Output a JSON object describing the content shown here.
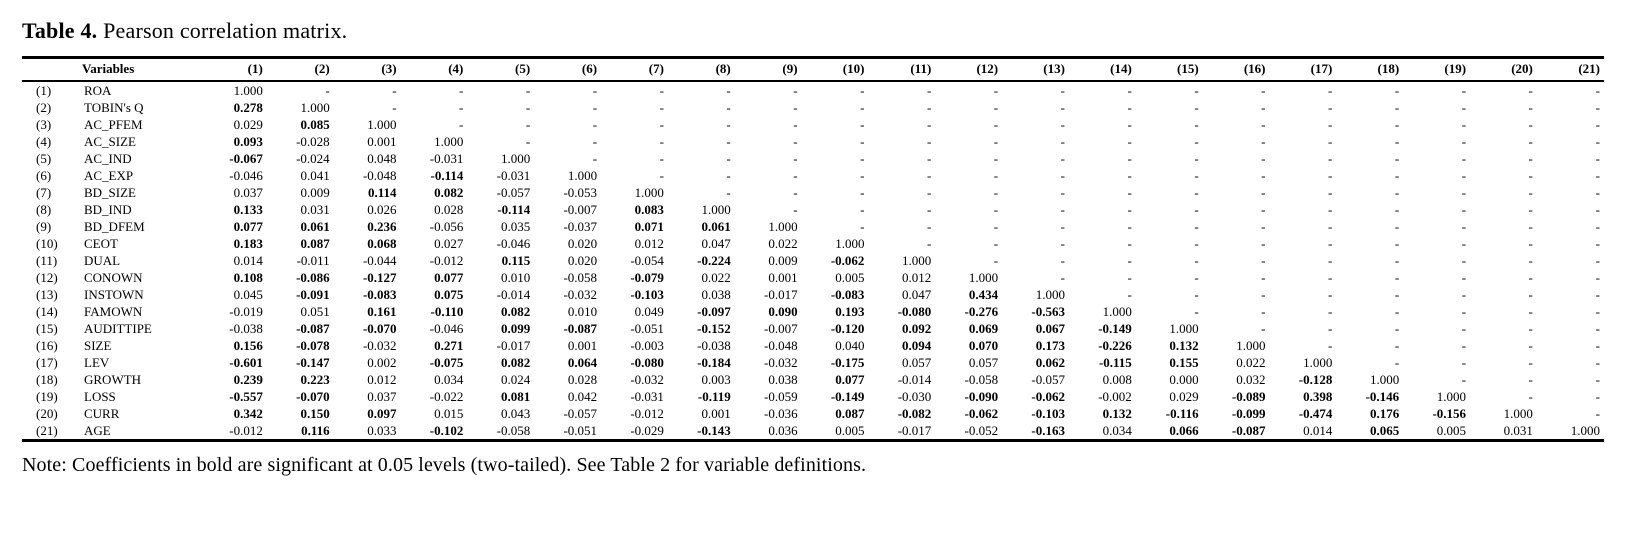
{
  "title": {
    "label": "Table 4.",
    "text": " Pearson correlation matrix."
  },
  "note": "Note: Coefficients in bold are significant at 0.05 levels (two-tailed). See Table 2 for variable definitions.",
  "table": {
    "corner_header": "Variables",
    "column_headers": [
      "(1)",
      "(2)",
      "(3)",
      "(4)",
      "(5)",
      "(6)",
      "(7)",
      "(8)",
      "(9)",
      "(10)",
      "(11)",
      "(12)",
      "(13)",
      "(14)",
      "(15)",
      "(16)",
      "(17)",
      "(18)",
      "(19)",
      "(20)",
      "(21)"
    ],
    "bold_meaning": "significant at 0.05 levels (two-tailed)",
    "rows": [
      {
        "num": "(1)",
        "name": "ROA",
        "values": [
          "1.000",
          "-",
          "-",
          "-",
          "-",
          "-",
          "-",
          "-",
          "-",
          "-",
          "-",
          "-",
          "-",
          "-",
          "-",
          "-",
          "-",
          "-",
          "-",
          "-",
          "-"
        ]
      },
      {
        "num": "(2)",
        "name": "TOBIN's Q",
        "values": [
          "*0.278",
          "1.000",
          "-",
          "-",
          "-",
          "-",
          "-",
          "-",
          "-",
          "-",
          "-",
          "-",
          "-",
          "-",
          "-",
          "-",
          "-",
          "-",
          "-",
          "-",
          "-"
        ]
      },
      {
        "num": "(3)",
        "name": "AC_PFEM",
        "values": [
          "0.029",
          "*0.085",
          "1.000",
          "-",
          "-",
          "-",
          "-",
          "-",
          "-",
          "-",
          "-",
          "-",
          "-",
          "-",
          "-",
          "-",
          "-",
          "-",
          "-",
          "-",
          "-"
        ]
      },
      {
        "num": "(4)",
        "name": "AC_SIZE",
        "values": [
          "*0.093",
          "-0.028",
          "0.001",
          "1.000",
          "-",
          "-",
          "-",
          "-",
          "-",
          "-",
          "-",
          "-",
          "-",
          "-",
          "-",
          "-",
          "-",
          "-",
          "-",
          "-",
          "-"
        ]
      },
      {
        "num": "(5)",
        "name": "AC_IND",
        "values": [
          "*-0.067",
          "-0.024",
          "0.048",
          "-0.031",
          "1.000",
          "-",
          "-",
          "-",
          "-",
          "-",
          "-",
          "-",
          "-",
          "-",
          "-",
          "-",
          "-",
          "-",
          "-",
          "-",
          "-"
        ]
      },
      {
        "num": "(6)",
        "name": "AC_EXP",
        "values": [
          "-0.046",
          "0.041",
          "-0.048",
          "*-0.114",
          "-0.031",
          "1.000",
          "-",
          "-",
          "-",
          "-",
          "-",
          "-",
          "-",
          "-",
          "-",
          "-",
          "-",
          "-",
          "-",
          "-",
          "-"
        ]
      },
      {
        "num": "(7)",
        "name": "BD_SIZE",
        "values": [
          "0.037",
          "0.009",
          "*0.114",
          "*0.082",
          "-0.057",
          "-0.053",
          "1.000",
          "-",
          "-",
          "-",
          "-",
          "-",
          "-",
          "-",
          "-",
          "-",
          "-",
          "-",
          "-",
          "-",
          "-"
        ]
      },
      {
        "num": "(8)",
        "name": "BD_IND",
        "values": [
          "*0.133",
          "0.031",
          "0.026",
          "0.028",
          "*-0.114",
          "-0.007",
          "*0.083",
          "1.000",
          "-",
          "-",
          "-",
          "-",
          "-",
          "-",
          "-",
          "-",
          "-",
          "-",
          "-",
          "-",
          "-"
        ]
      },
      {
        "num": "(9)",
        "name": "BD_DFEM",
        "values": [
          "*0.077",
          "*0.061",
          "*0.236",
          "-0.056",
          "0.035",
          "-0.037",
          "*0.071",
          "*0.061",
          "1.000",
          "-",
          "-",
          "-",
          "-",
          "-",
          "-",
          "-",
          "-",
          "-",
          "-",
          "-",
          "-"
        ]
      },
      {
        "num": "(10)",
        "name": "CEOT",
        "values": [
          "*0.183",
          "*0.087",
          "*0.068",
          "0.027",
          "-0.046",
          "0.020",
          "0.012",
          "0.047",
          "0.022",
          "1.000",
          "-",
          "-",
          "-",
          "-",
          "-",
          "-",
          "-",
          "-",
          "-",
          "-",
          "-"
        ]
      },
      {
        "num": "(11)",
        "name": "DUAL",
        "values": [
          "0.014",
          "-0.011",
          "-0.044",
          "-0.012",
          "*0.115",
          "0.020",
          "-0.054",
          "*-0.224",
          "0.009",
          "*-0.062",
          "1.000",
          "-",
          "-",
          "-",
          "-",
          "-",
          "-",
          "-",
          "-",
          "-",
          "-"
        ]
      },
      {
        "num": "(12)",
        "name": "CONOWN",
        "values": [
          "*0.108",
          "*-0.086",
          "*-0.127",
          "*0.077",
          "0.010",
          "-0.058",
          "*-0.079",
          "0.022",
          "0.001",
          "0.005",
          "0.012",
          "1.000",
          "-",
          "-",
          "-",
          "-",
          "-",
          "-",
          "-",
          "-",
          "-"
        ]
      },
      {
        "num": "(13)",
        "name": "INSTOWN",
        "values": [
          "0.045",
          "*-0.091",
          "*-0.083",
          "*0.075",
          "-0.014",
          "-0.032",
          "*-0.103",
          "0.038",
          "-0.017",
          "*-0.083",
          "0.047",
          "*0.434",
          "1.000",
          "-",
          "-",
          "-",
          "-",
          "-",
          "-",
          "-",
          "-"
        ]
      },
      {
        "num": "(14)",
        "name": "FAMOWN",
        "values": [
          "-0.019",
          "0.051",
          "*0.161",
          "*-0.110",
          "*0.082",
          "0.010",
          "0.049",
          "*-0.097",
          "*0.090",
          "*0.193",
          "*-0.080",
          "*-0.276",
          "*-0.563",
          "1.000",
          "-",
          "-",
          "-",
          "-",
          "-",
          "-",
          "-"
        ]
      },
      {
        "num": "(15)",
        "name": "AUDITTIPE",
        "values": [
          "-0.038",
          "*-0.087",
          "*-0.070",
          "-0.046",
          "*0.099",
          "*-0.087",
          "-0.051",
          "*-0.152",
          "-0.007",
          "*-0.120",
          "*0.092",
          "*0.069",
          "*0.067",
          "*-0.149",
          "1.000",
          "-",
          "-",
          "-",
          "-",
          "-",
          "-"
        ]
      },
      {
        "num": "(16)",
        "name": "SIZE",
        "values": [
          "*0.156",
          "*-0.078",
          "-0.032",
          "*0.271",
          "-0.017",
          "0.001",
          "-0.003",
          "-0.038",
          "-0.048",
          "0.040",
          "*0.094",
          "*0.070",
          "*0.173",
          "*-0.226",
          "*0.132",
          "1.000",
          "-",
          "-",
          "-",
          "-",
          "-"
        ]
      },
      {
        "num": "(17)",
        "name": "LEV",
        "values": [
          "*-0.601",
          "*-0.147",
          "0.002",
          "*-0.075",
          "*0.082",
          "*0.064",
          "*-0.080",
          "*-0.184",
          "-0.032",
          "*-0.175",
          "0.057",
          "0.057",
          "*0.062",
          "*-0.115",
          "*0.155",
          "0.022",
          "1.000",
          "-",
          "-",
          "-",
          "-"
        ]
      },
      {
        "num": "(18)",
        "name": "GROWTH",
        "values": [
          "*0.239",
          "*0.223",
          "0.012",
          "0.034",
          "0.024",
          "0.028",
          "-0.032",
          "0.003",
          "0.038",
          "*0.077",
          "-0.014",
          "-0.058",
          "-0.057",
          "0.008",
          "0.000",
          "0.032",
          "*-0.128",
          "1.000",
          "-",
          "-",
          "-"
        ]
      },
      {
        "num": "(19)",
        "name": "LOSS",
        "values": [
          "*-0.557",
          "*-0.070",
          "0.037",
          "-0.022",
          "*0.081",
          "0.042",
          "-0.031",
          "*-0.119",
          "-0.059",
          "*-0.149",
          "-0.030",
          "*-0.090",
          "*-0.062",
          "-0.002",
          "0.029",
          "*-0.089",
          "*0.398",
          "*-0.146",
          "1.000",
          "-",
          "-"
        ]
      },
      {
        "num": "(20)",
        "name": "CURR",
        "values": [
          "*0.342",
          "*0.150",
          "*0.097",
          "0.015",
          "0.043",
          "-0.057",
          "-0.012",
          "0.001",
          "-0.036",
          "*0.087",
          "*-0.082",
          "*-0.062",
          "*-0.103",
          "*0.132",
          "*-0.116",
          "*-0.099",
          "*-0.474",
          "*0.176",
          "*-0.156",
          "1.000",
          "-"
        ]
      },
      {
        "num": "(21)",
        "name": "AGE",
        "values": [
          "-0.012",
          "*0.116",
          "0.033",
          "*-0.102",
          "-0.058",
          "-0.051",
          "-0.029",
          "*-0.143",
          "0.036",
          "0.005",
          "-0.017",
          "-0.052",
          "*-0.163",
          "0.034",
          "*0.066",
          "*-0.087",
          "0.014",
          "*0.065",
          "0.005",
          "0.031",
          "1.000"
        ]
      }
    ]
  }
}
